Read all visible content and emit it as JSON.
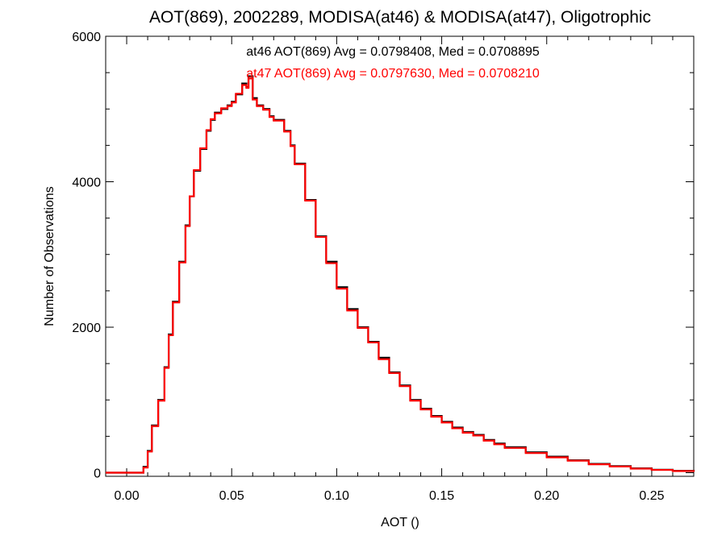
{
  "chart_data": {
    "type": "line",
    "step": true,
    "title": "AOT(869), 2002289, MODISA(at46) & MODISA(at47), Oligotrophic",
    "xlabel": "AOT ()",
    "ylabel": "Number of Observations",
    "xlim": [
      -0.01,
      0.27
    ],
    "ylim": [
      -50,
      6000
    ],
    "xticks": [
      0.0,
      0.05,
      0.1,
      0.15,
      0.2,
      0.25
    ],
    "xtick_labels": [
      "0.00",
      "0.05",
      "0.10",
      "0.15",
      "0.20",
      "0.25"
    ],
    "yticks": [
      0,
      2000,
      4000,
      6000
    ],
    "ytick_labels": [
      "0",
      "2000",
      "4000",
      "6000"
    ],
    "grid": false,
    "annotations": [
      {
        "text": "at46 AOT(869) Avg = 0.0798408, Med = 0.0708895",
        "color": "#000000"
      },
      {
        "text": "at47 AOT(869) Avg = 0.0797630, Med = 0.0708210",
        "color": "#ff0000"
      }
    ],
    "x": [
      -0.01,
      0.0,
      0.005,
      0.008,
      0.01,
      0.012,
      0.015,
      0.018,
      0.02,
      0.022,
      0.025,
      0.028,
      0.03,
      0.032,
      0.035,
      0.038,
      0.04,
      0.042,
      0.045,
      0.048,
      0.05,
      0.052,
      0.055,
      0.057,
      0.058,
      0.06,
      0.062,
      0.065,
      0.068,
      0.07,
      0.072,
      0.075,
      0.078,
      0.08,
      0.085,
      0.09,
      0.095,
      0.1,
      0.105,
      0.11,
      0.115,
      0.12,
      0.125,
      0.13,
      0.135,
      0.14,
      0.145,
      0.15,
      0.155,
      0.16,
      0.165,
      0.17,
      0.175,
      0.18,
      0.19,
      0.2,
      0.21,
      0.22,
      0.23,
      0.24,
      0.25,
      0.26,
      0.27
    ],
    "series": [
      {
        "name": "at46",
        "color": "#000000",
        "values": [
          0,
          0,
          0,
          80,
          300,
          650,
          1000,
          1450,
          1900,
          2350,
          2900,
          3400,
          3800,
          4150,
          4450,
          4700,
          4850,
          4950,
          5000,
          5050,
          5100,
          5200,
          5350,
          5300,
          5450,
          5150,
          5050,
          5000,
          4900,
          4850,
          4850,
          4700,
          4500,
          4250,
          3750,
          3250,
          2900,
          2550,
          2250,
          2000,
          1800,
          1580,
          1380,
          1200,
          1000,
          880,
          780,
          700,
          620,
          560,
          520,
          450,
          400,
          350,
          280,
          220,
          170,
          120,
          90,
          60,
          40,
          25,
          15
        ]
      },
      {
        "name": "at47",
        "color": "#ff0000",
        "values": [
          0,
          0,
          0,
          70,
          290,
          640,
          990,
          1440,
          1890,
          2340,
          2890,
          3390,
          3800,
          4160,
          4460,
          4710,
          4860,
          4940,
          5010,
          5040,
          5090,
          5210,
          5330,
          5290,
          5420,
          5130,
          5040,
          4990,
          4890,
          4840,
          4840,
          4690,
          4490,
          4240,
          3740,
          3240,
          2880,
          2530,
          2230,
          1990,
          1790,
          1560,
          1370,
          1190,
          990,
          870,
          770,
          690,
          610,
          550,
          510,
          440,
          390,
          340,
          270,
          210,
          165,
          115,
          85,
          55,
          38,
          22,
          12
        ]
      }
    ]
  }
}
